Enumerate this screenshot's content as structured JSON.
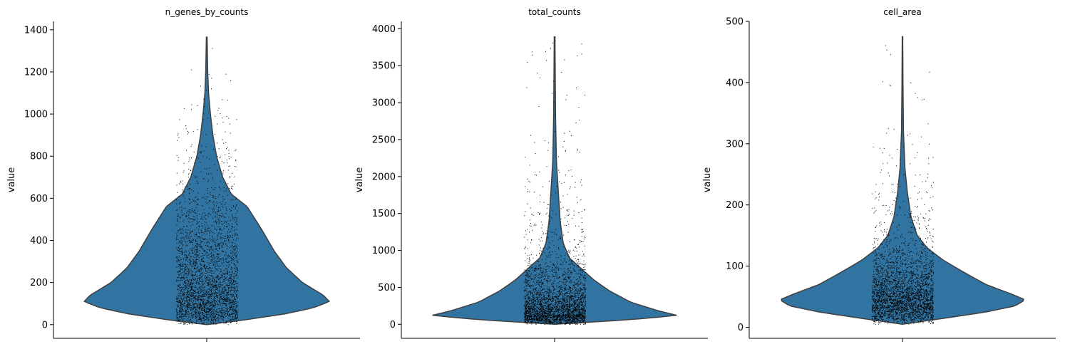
{
  "chart_data": [
    {
      "type": "violin",
      "title": "n_genes_by_counts",
      "ylabel": "value",
      "xlabel": "",
      "ylim": [
        -65,
        1440
      ],
      "yticks": [
        0,
        200,
        400,
        600,
        800,
        1000,
        1200,
        1400
      ],
      "ytick_labels": [
        "0",
        "200",
        "400",
        "600",
        "800",
        "1000",
        "1200",
        "1400"
      ],
      "violin_color": "#3274a1",
      "edge_color": "#3f3f3f",
      "point_color": "#000000",
      "points_shown": true,
      "data_min": 0,
      "data_max": 1365,
      "density_profile": [
        {
          "value": 0,
          "density": 0.0
        },
        {
          "value": 20,
          "density": 0.28
        },
        {
          "value": 50,
          "density": 0.63
        },
        {
          "value": 80,
          "density": 0.87
        },
        {
          "value": 110,
          "density": 1.0
        },
        {
          "value": 140,
          "density": 0.95
        },
        {
          "value": 200,
          "density": 0.78
        },
        {
          "value": 270,
          "density": 0.65
        },
        {
          "value": 350,
          "density": 0.55
        },
        {
          "value": 450,
          "density": 0.45
        },
        {
          "value": 560,
          "density": 0.33
        },
        {
          "value": 620,
          "density": 0.2
        },
        {
          "value": 700,
          "density": 0.13
        },
        {
          "value": 800,
          "density": 0.08
        },
        {
          "value": 900,
          "density": 0.05
        },
        {
          "value": 1000,
          "density": 0.03
        },
        {
          "value": 1100,
          "density": 0.015
        },
        {
          "value": 1200,
          "density": 0.008
        },
        {
          "value": 1365,
          "density": 0.003
        }
      ]
    },
    {
      "type": "violin",
      "title": "total_counts",
      "ylabel": "value",
      "xlabel": "",
      "ylim": [
        -190,
        4100
      ],
      "yticks": [
        0,
        500,
        1000,
        1500,
        2000,
        2500,
        3000,
        3500,
        4000
      ],
      "ytick_labels": [
        "0",
        "500",
        "1000",
        "1500",
        "2000",
        "2500",
        "3000",
        "3500",
        "4000"
      ],
      "violin_color": "#3274a1",
      "edge_color": "#3f3f3f",
      "point_color": "#000000",
      "points_shown": true,
      "data_min": 0,
      "data_max": 3890,
      "density_profile": [
        {
          "value": 0,
          "density": 0.0
        },
        {
          "value": 60,
          "density": 0.6
        },
        {
          "value": 120,
          "density": 1.0
        },
        {
          "value": 180,
          "density": 0.85
        },
        {
          "value": 300,
          "density": 0.62
        },
        {
          "value": 450,
          "density": 0.45
        },
        {
          "value": 600,
          "density": 0.32
        },
        {
          "value": 750,
          "density": 0.22
        },
        {
          "value": 900,
          "density": 0.12
        },
        {
          "value": 1100,
          "density": 0.07
        },
        {
          "value": 1400,
          "density": 0.045
        },
        {
          "value": 1800,
          "density": 0.03
        },
        {
          "value": 2200,
          "density": 0.015
        },
        {
          "value": 2800,
          "density": 0.008
        },
        {
          "value": 3400,
          "density": 0.005
        },
        {
          "value": 3890,
          "density": 0.003
        }
      ]
    },
    {
      "type": "violin",
      "title": "cell_area",
      "ylabel": "value",
      "xlabel": "",
      "ylim": [
        -18,
        500
      ],
      "yticks": [
        0,
        100,
        200,
        300,
        400,
        500
      ],
      "ytick_labels": [
        "0",
        "100",
        "200",
        "300",
        "400",
        "500"
      ],
      "violin_color": "#3274a1",
      "edge_color": "#3f3f3f",
      "point_color": "#000000",
      "points_shown": true,
      "data_min": 5,
      "data_max": 475,
      "density_profile": [
        {
          "value": 5,
          "density": 0.0
        },
        {
          "value": 15,
          "density": 0.35
        },
        {
          "value": 25,
          "density": 0.68
        },
        {
          "value": 35,
          "density": 0.92
        },
        {
          "value": 45,
          "density": 1.0
        },
        {
          "value": 55,
          "density": 0.88
        },
        {
          "value": 70,
          "density": 0.68
        },
        {
          "value": 90,
          "density": 0.5
        },
        {
          "value": 110,
          "density": 0.33
        },
        {
          "value": 130,
          "density": 0.2
        },
        {
          "value": 150,
          "density": 0.12
        },
        {
          "value": 180,
          "density": 0.07
        },
        {
          "value": 220,
          "density": 0.04
        },
        {
          "value": 260,
          "density": 0.02
        },
        {
          "value": 320,
          "density": 0.008
        },
        {
          "value": 400,
          "density": 0.004
        },
        {
          "value": 475,
          "density": 0.002
        }
      ]
    }
  ]
}
